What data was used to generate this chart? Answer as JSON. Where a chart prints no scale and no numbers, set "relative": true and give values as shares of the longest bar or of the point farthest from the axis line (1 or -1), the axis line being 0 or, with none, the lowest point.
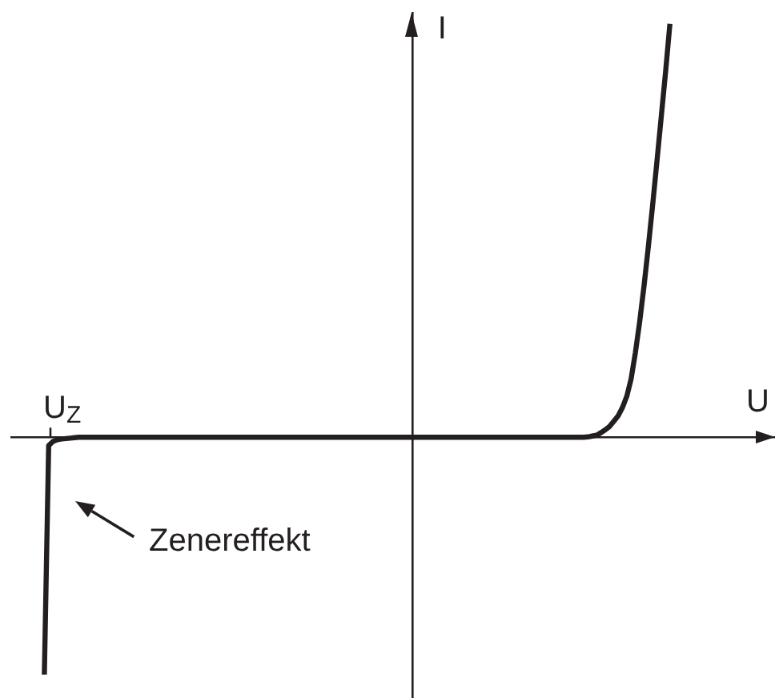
{
  "chart_data": {
    "type": "line",
    "xlabel": "U",
    "ylabel": "I",
    "relative": true,
    "categories": [
      null,
      null,
      null,
      null,
      null,
      null,
      null,
      null,
      null,
      null,
      null,
      null,
      null,
      null,
      null,
      null,
      null,
      null,
      null,
      null,
      null,
      null,
      null,
      null,
      null,
      null,
      null,
      null,
      null,
      null,
      null,
      null,
      null,
      null,
      null,
      null,
      null,
      null,
      null,
      null,
      null,
      null,
      null,
      null,
      null,
      null,
      null,
      null,
      null,
      null,
      null,
      null,
      null,
      null,
      null,
      null,
      null,
      null,
      null,
      null,
      null,
      null,
      null,
      null,
      null,
      null,
      null,
      null,
      null,
      null,
      null,
      null,
      null,
      null,
      null,
      null,
      null,
      null,
      null,
      null,
      null,
      null,
      null,
      null,
      null,
      null,
      null,
      null,
      null,
      null,
      null,
      null,
      null,
      null,
      null,
      null,
      null,
      null,
      null,
      null,
      null,
      null,
      null,
      null,
      null,
      null,
      null,
      null,
      null,
      null,
      null,
      null,
      null,
      null,
      null,
      null,
      null,
      null,
      null,
      null,
      null,
      null,
      null,
      null,
      null,
      null,
      null,
      null,
      null,
      null,
      null,
      null,
      null,
      null,
      null,
      null,
      null,
      null,
      null,
      null,
      null,
      null,
      null,
      null,
      null,
      null
    ],
    "values": [
      -0.574,
      -0.02,
      -0.01,
      -0.006,
      -0.004,
      -0.003,
      -0.002,
      -0.001,
      0,
      0,
      0,
      0,
      0,
      0,
      0,
      0,
      0,
      0,
      0,
      0,
      0,
      0,
      0,
      0,
      0,
      0,
      0,
      0,
      0,
      0,
      0,
      0,
      0,
      0,
      0,
      0,
      0,
      0,
      0,
      0,
      0,
      0,
      0,
      0,
      0,
      0,
      0,
      0,
      0,
      0,
      0,
      0,
      0,
      0,
      0,
      0,
      0,
      0,
      0,
      0,
      0,
      0,
      0,
      0,
      0,
      0,
      0,
      0,
      0,
      0,
      0,
      0,
      0,
      0,
      0,
      0,
      0,
      0,
      0,
      0,
      0,
      0,
      0,
      0,
      0,
      0,
      0,
      0,
      0,
      0,
      0,
      0,
      0,
      0,
      0,
      0,
      0,
      0,
      0,
      0,
      0,
      0,
      0,
      0,
      0,
      0,
      0,
      0,
      0,
      0,
      0,
      0,
      0,
      0,
      0,
      0,
      0,
      0,
      0,
      0,
      0,
      0,
      0,
      0,
      0,
      0,
      0.001,
      0.003,
      0.005,
      0.011,
      0.018,
      0.026,
      0.039,
      0.052,
      0.072,
      0.099,
      0.141,
      0.205,
      0.28,
      0.366,
      0.461,
      0.562,
      0.668,
      0.776,
      0.884,
      1
    ],
    "color": "#231f20",
    "annotations": [
      "U$_{Z}$",
      "Zenereffekt"
    ]
  }
}
